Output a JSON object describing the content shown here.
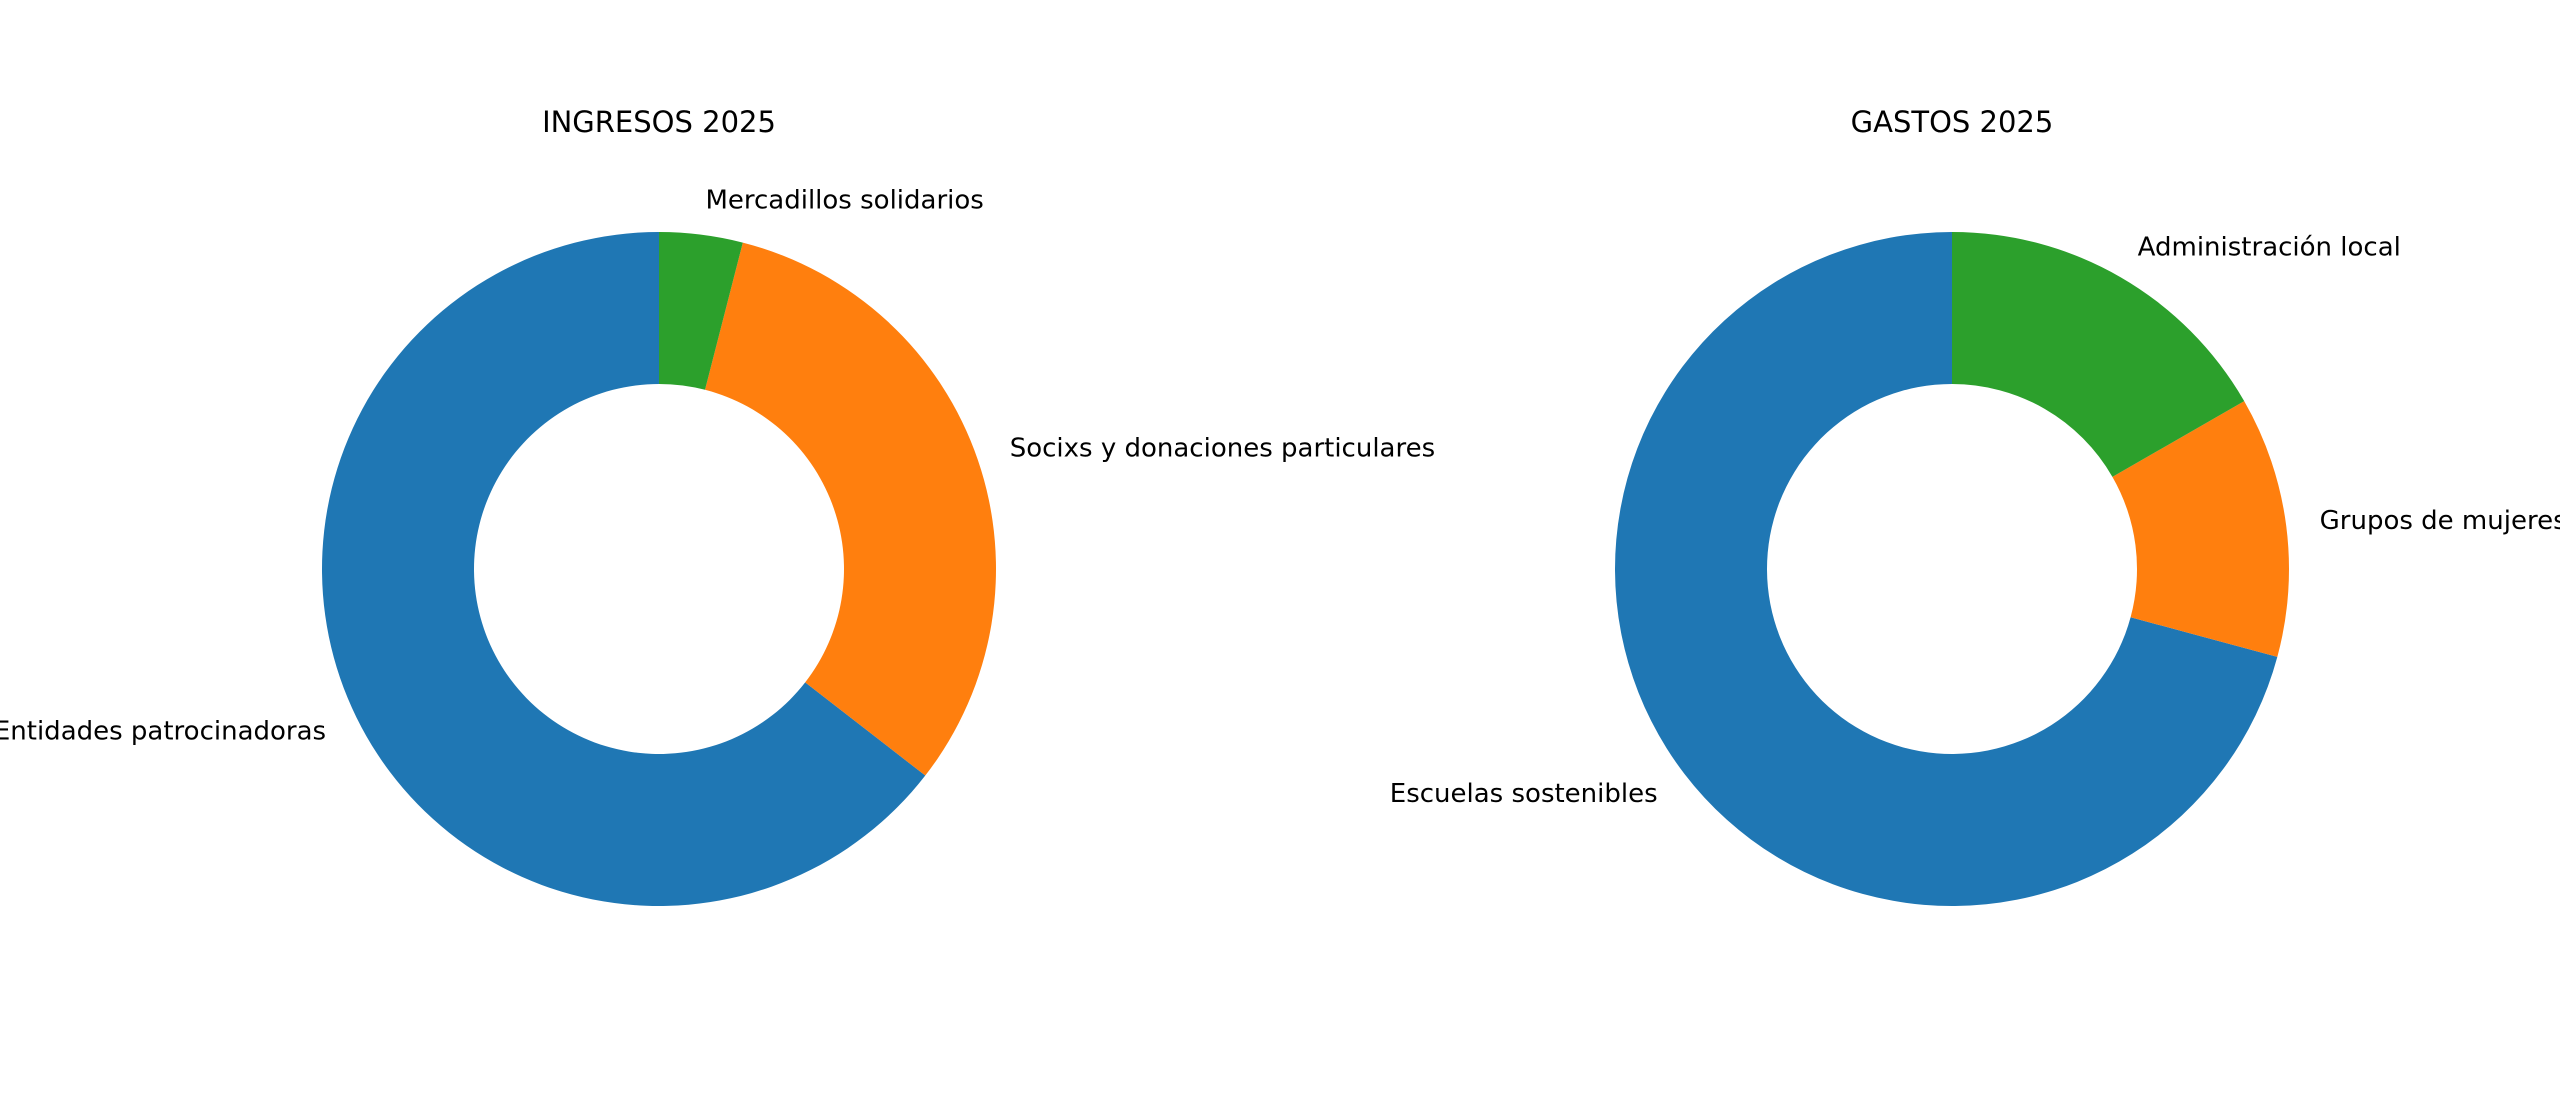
{
  "chart_data": [
    {
      "type": "pie",
      "variant": "donut",
      "title": "INGRESOS 2025",
      "start_angle_deg": 90,
      "direction": "counterclockwise",
      "slices": [
        {
          "label": "Entidades patrocinadoras",
          "value": 64.5,
          "color": "#1f77b4"
        },
        {
          "label": "Socixs y donaciones particulares",
          "value": 31.5,
          "color": "#ff7f0e"
        },
        {
          "label": "Mercadillos solidarios",
          "value": 4.0,
          "color": "#2ca02c"
        }
      ]
    },
    {
      "type": "pie",
      "variant": "donut",
      "title": "GASTOS 2025",
      "start_angle_deg": 90,
      "direction": "counterclockwise",
      "slices": [
        {
          "label": "Escuelas sostenibles",
          "value": 70.8,
          "color": "#1f77b4"
        },
        {
          "label": "Grupos de mujeres",
          "value": 12.5,
          "color": "#ff7f0e"
        },
        {
          "label": "Administración local",
          "value": 16.7,
          "color": "#2ca02c"
        }
      ]
    }
  ]
}
